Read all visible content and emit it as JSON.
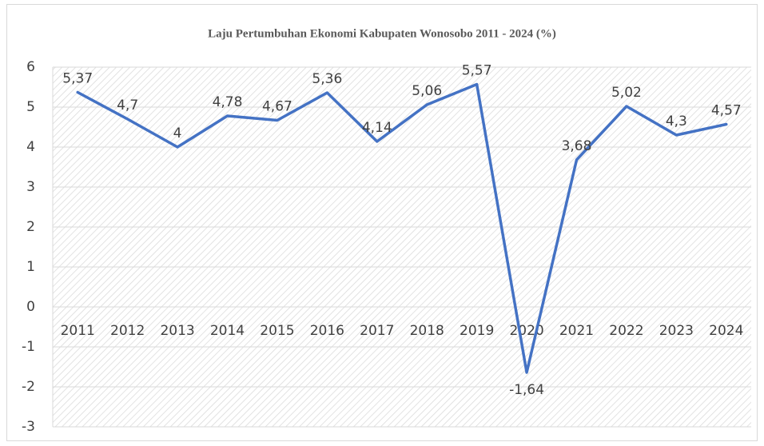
{
  "chart_data": {
    "type": "line",
    "title": "Laju Pertumbuhan Ekonomi Kabupaten Wonosobo 2011 - 2024 (%)",
    "categories": [
      "2011",
      "2012",
      "2013",
      "2014",
      "2015",
      "2016",
      "2017",
      "2018",
      "2019",
      "2020",
      "2021",
      "2022",
      "2023",
      "2024"
    ],
    "values": [
      5.37,
      4.7,
      4,
      4.78,
      4.67,
      5.36,
      4.14,
      5.06,
      5.57,
      -1.64,
      3.68,
      5.02,
      4.3,
      4.57
    ],
    "value_labels": [
      "5,37",
      "4,7",
      "4",
      "4,78",
      "4,67",
      "5,36",
      "4,14",
      "5,06",
      "5,57",
      "-1,64",
      "3,68",
      "5,02",
      "4,3",
      "4,57"
    ],
    "color": "#4472c4",
    "ylim": [
      -3,
      6
    ],
    "yticks": [
      -3,
      -2,
      -1,
      0,
      1,
      2,
      3,
      4,
      5,
      6
    ],
    "grid": true
  }
}
